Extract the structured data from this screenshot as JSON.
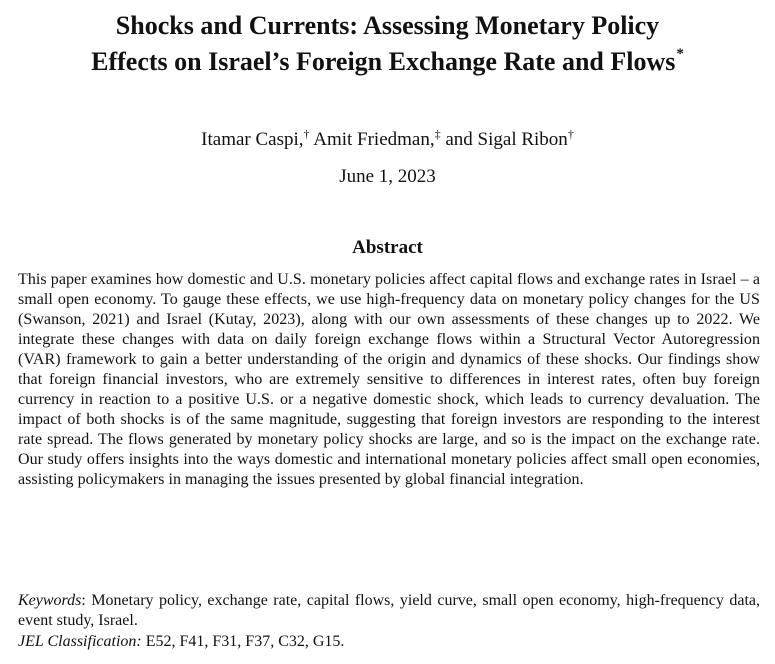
{
  "paper": {
    "title_line1": "Shocks and Currents: Assessing Monetary Policy",
    "title_line2": "Effects on Israel’s Foreign Exchange Rate and Flows",
    "title_mark": "*",
    "authors": {
      "author1": "Itamar Caspi,",
      "author1_mark": "†",
      "author2": " Amit Friedman,",
      "author2_mark": "‡",
      "author3": " and Sigal Ribon",
      "author3_mark": "†"
    },
    "date": "June 1, 2023",
    "abstract_heading": "Abstract",
    "abstract_text": "This paper examines how domestic and U.S. monetary policies affect capital flows and exchange rates in Israel – a small open economy. To gauge these effects, we use high-frequency data on monetary policy changes for the US (Swanson, 2021) and Israel (Kutay, 2023), along with our own assessments of these changes up to 2022. We integrate these changes with data on daily foreign exchange flows within a Structural Vector Autoregression (VAR) framework to gain a better understanding of the origin and dynamics of these shocks. Our findings show that foreign financial investors, who are extremely sensitive to differences in interest rates, often buy foreign currency in reaction to a positive U.S. or a negative domestic shock, which leads to currency devaluation. The impact of both shocks is of the same magnitude, suggesting that foreign investors are responding to the interest rate spread. The flows generated by monetary policy shocks are large, and so is the impact on the exchange rate. Our study offers insights into the ways domestic and international monetary policies affect small open economies, assisting policymakers in managing the issues presented by global financial integration.",
    "keywords_label": "Keywords",
    "keywords_text": ": Monetary policy, exchange rate, capital flows, yield curve, small open economy, high-frequency data, event study, Israel.",
    "jel_label": "JEL Classification:",
    "jel_text": " E52, F41, F31, F37, C32, G15."
  }
}
